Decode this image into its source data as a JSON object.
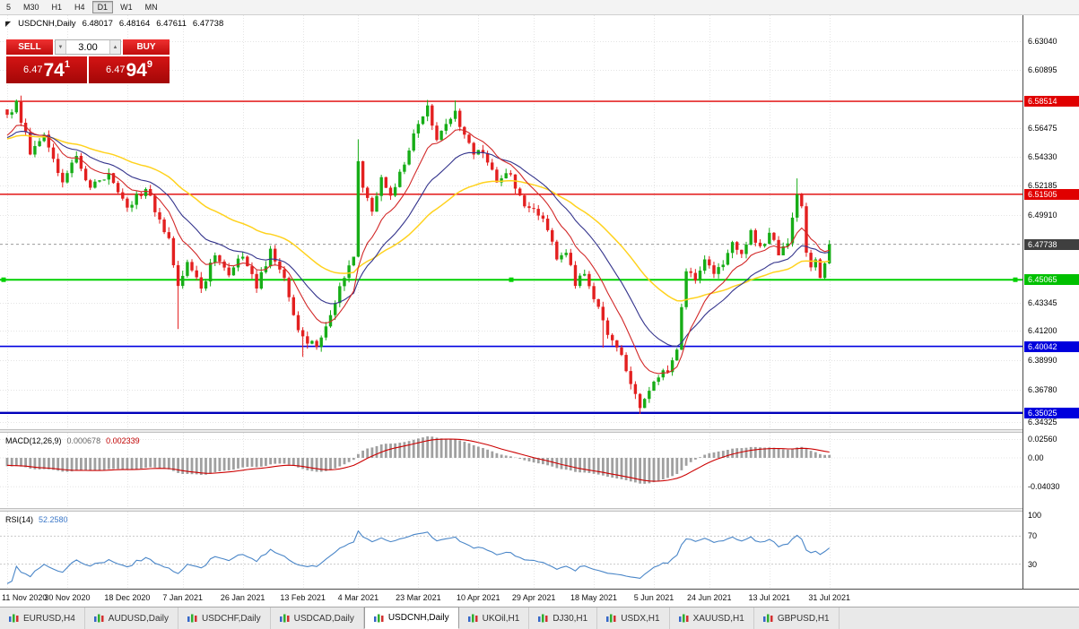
{
  "toolbar": {
    "timeframes": [
      {
        "label": "5",
        "selected": false
      },
      {
        "label": "M30",
        "selected": false
      },
      {
        "label": "H1",
        "selected": false
      },
      {
        "label": "H4",
        "selected": false
      },
      {
        "label": "D1",
        "selected": true
      },
      {
        "label": "W1",
        "selected": false
      },
      {
        "label": "MN",
        "selected": false
      }
    ]
  },
  "icons": {
    "collapse": "◤",
    "volume_down": "▼",
    "volume_up": "▲"
  },
  "header": {
    "symbol": "USDCNH,Daily",
    "open": "6.48017",
    "high": "6.48164",
    "low": "6.47611",
    "close": "6.47738"
  },
  "trade_panel": {
    "sell_label": "SELL",
    "buy_label": "BUY",
    "volume": "3.00",
    "sell_price": {
      "prefix": "6.47",
      "big": "74",
      "sup": "1"
    },
    "buy_price": {
      "prefix": "6.47",
      "big": "94",
      "sup": "9"
    }
  },
  "macd_panel": {
    "title": "MACD(12,26,9)",
    "value_main": "0.000678",
    "value_signal": "0.002339",
    "axis": [
      {
        "label": "0.02560",
        "value": 0.0256
      },
      {
        "label": "0.00",
        "value": 0
      },
      {
        "label": "-0.04030",
        "value": -0.0403
      }
    ]
  },
  "rsi_panel": {
    "title": "RSI(14)",
    "value": "52.2580",
    "axis": [
      {
        "label": "100",
        "value": 100
      },
      {
        "label": "70",
        "value": 70
      },
      {
        "label": "30",
        "value": 30
      }
    ],
    "levels": [
      70,
      30
    ]
  },
  "tabs": [
    {
      "label": "EURUSD,H4",
      "active": false
    },
    {
      "label": "AUDUSD,Daily",
      "active": false
    },
    {
      "label": "USDCHF,Daily",
      "active": false
    },
    {
      "label": "USDCAD,Daily",
      "active": false
    },
    {
      "label": "USDCNH,Daily",
      "active": true
    },
    {
      "label": "UKOil,H1",
      "active": false
    },
    {
      "label": "DJ30,H1",
      "active": false
    },
    {
      "label": "USDX,H1",
      "active": false
    },
    {
      "label": "XAUUSD,H1",
      "active": false
    },
    {
      "label": "GBPUSD,H1",
      "active": false
    }
  ],
  "colors": {
    "bull": "#17ad17",
    "bear": "#e32020",
    "grid": "#e4e4e4",
    "macd_bar": "#a0a0a0",
    "macd_signal": "#cc0000",
    "rsi_line": "#4a86c8"
  },
  "chart_data": {
    "type": "candlestick",
    "symbol": "USDCNH",
    "timeframe": "Daily",
    "values_approximate": true,
    "y_range": [
      6.338,
      6.65
    ],
    "y_ticks": [
      {
        "label": "6.63040",
        "value": 6.6304
      },
      {
        "label": "6.60895",
        "value": 6.60895
      },
      {
        "label": "6.56475",
        "value": 6.56475
      },
      {
        "label": "6.54330",
        "value": 6.5433
      },
      {
        "label": "6.52185",
        "value": 6.52185
      },
      {
        "label": "6.49910",
        "value": 6.4991
      },
      {
        "label": "6.43345",
        "value": 6.43345
      },
      {
        "label": "6.41200",
        "value": 6.412
      },
      {
        "label": "6.38990",
        "value": 6.3899
      },
      {
        "label": "6.36780",
        "value": 6.3678
      },
      {
        "label": "6.34325",
        "value": 6.34325
      }
    ],
    "price_badges": [
      {
        "label": "6.58514",
        "value": 6.58514,
        "type": "red"
      },
      {
        "label": "6.51505",
        "value": 6.51505,
        "type": "red"
      },
      {
        "label": "6.47738",
        "value": 6.47738,
        "type": "price"
      },
      {
        "label": "6.45065",
        "value": 6.45065,
        "type": "green"
      },
      {
        "label": "6.40042",
        "value": 6.40042,
        "type": "blue"
      },
      {
        "label": "6.35025",
        "value": 6.35025,
        "type": "blue"
      }
    ],
    "levels": [
      {
        "value": 6.58514,
        "color": "#e00000",
        "width": 1.4,
        "handles": false
      },
      {
        "value": 6.51505,
        "color": "#e00000",
        "width": 1.4,
        "handles": false
      },
      {
        "value": 6.45065,
        "color": "#00d000",
        "width": 2,
        "handles": true
      },
      {
        "value": 6.40042,
        "color": "#0000e0",
        "width": 1.6,
        "handles": false
      },
      {
        "value": 6.35025,
        "color": "#0000bb",
        "width": 2.4,
        "handles": false
      }
    ],
    "current_price": {
      "value": 6.47738,
      "label": "6.47738"
    },
    "x_start": 8,
    "x_step": 5.15,
    "candle_count": 179,
    "dates": [
      {
        "label": "11 Nov 2020",
        "idx": 0
      },
      {
        "label": "30 Nov 2020",
        "idx": 13
      },
      {
        "label": "18 Dec 2020",
        "idx": 26
      },
      {
        "label": "7 Jan 2021",
        "idx": 38
      },
      {
        "label": "26 Jan 2021",
        "idx": 51
      },
      {
        "label": "13 Feb 2021",
        "idx": 64
      },
      {
        "label": "4 Mar 2021",
        "idx": 76
      },
      {
        "label": "23 Mar 2021",
        "idx": 89
      },
      {
        "label": "10 Apr 2021",
        "idx": 102
      },
      {
        "label": "29 Apr 2021",
        "idx": 114
      },
      {
        "label": "18 May 2021",
        "idx": 127
      },
      {
        "label": "5 Jun 2021",
        "idx": 140
      },
      {
        "label": "24 Jun 2021",
        "idx": 152
      },
      {
        "label": "13 Jul 2021",
        "idx": 165
      },
      {
        "label": "31 Jul 2021",
        "idx": 178
      }
    ],
    "anchors": [
      [
        0,
        6.575
      ],
      [
        2,
        6.5855
      ],
      [
        5,
        6.545
      ],
      [
        8,
        6.56
      ],
      [
        12,
        6.524
      ],
      [
        15,
        6.544
      ],
      [
        18,
        6.52
      ],
      [
        22,
        6.531
      ],
      [
        26,
        6.505
      ],
      [
        30,
        6.519
      ],
      [
        33,
        6.496
      ],
      [
        35,
        6.482
      ],
      [
        37,
        6.446
      ],
      [
        39,
        6.464
      ],
      [
        42,
        6.444
      ],
      [
        45,
        6.469
      ],
      [
        48,
        6.454
      ],
      [
        51,
        6.468
      ],
      [
        54,
        6.444
      ],
      [
        57,
        6.474
      ],
      [
        60,
        6.452
      ],
      [
        62,
        6.424
      ],
      [
        64,
        6.408
      ],
      [
        67,
        6.4
      ],
      [
        70,
        6.424
      ],
      [
        73,
        6.452
      ],
      [
        75,
        6.468
      ],
      [
        76,
        6.54
      ],
      [
        77,
        6.52
      ],
      [
        79,
        6.502
      ],
      [
        81,
        6.528
      ],
      [
        83,
        6.514
      ],
      [
        85,
        6.532
      ],
      [
        87,
        6.548
      ],
      [
        89,
        6.568
      ],
      [
        91,
        6.582
      ],
      [
        93,
        6.556
      ],
      [
        95,
        6.568
      ],
      [
        97,
        6.578
      ],
      [
        99,
        6.56
      ],
      [
        101,
        6.545
      ],
      [
        103,
        6.546
      ],
      [
        106,
        6.524
      ],
      [
        109,
        6.53
      ],
      [
        112,
        6.506
      ],
      [
        115,
        6.499
      ],
      [
        117,
        6.488
      ],
      [
        119,
        6.466
      ],
      [
        121,
        6.471
      ],
      [
        123,
        6.446
      ],
      [
        125,
        6.455
      ],
      [
        127,
        6.436
      ],
      [
        129,
        6.42
      ],
      [
        131,
        6.405
      ],
      [
        133,
        6.394
      ],
      [
        135,
        6.372
      ],
      [
        137,
        6.354
      ],
      [
        139,
        6.367
      ],
      [
        141,
        6.377
      ],
      [
        143,
        6.381
      ],
      [
        145,
        6.398
      ],
      [
        146,
        6.43
      ],
      [
        147,
        6.457
      ],
      [
        149,
        6.45
      ],
      [
        151,
        6.466
      ],
      [
        153,
        6.455
      ],
      [
        155,
        6.462
      ],
      [
        157,
        6.479
      ],
      [
        159,
        6.47
      ],
      [
        161,
        6.488
      ],
      [
        163,
        6.476
      ],
      [
        165,
        6.486
      ],
      [
        167,
        6.469
      ],
      [
        169,
        6.478
      ],
      [
        171,
        6.515
      ],
      [
        172,
        6.506
      ],
      [
        173,
        6.471
      ],
      [
        174,
        6.46
      ],
      [
        175,
        6.466
      ],
      [
        176,
        6.452
      ],
      [
        177,
        6.463
      ],
      [
        178,
        6.4774
      ]
    ],
    "wick_high_overrides": {
      "2": 6.5865,
      "76": 6.5565,
      "91": 6.5862,
      "97": 6.5858,
      "171": 6.527
    },
    "wick_low_overrides": {
      "37": 6.4135,
      "64": 6.3925,
      "129": 6.3995,
      "137": 6.3495
    },
    "moving_averages": [
      {
        "name": "slow",
        "period": 45,
        "color": "#ffd21e"
      },
      {
        "name": "mid",
        "period": 21,
        "color": "#34348c"
      },
      {
        "name": "fast",
        "period": 10,
        "color": "#d22828"
      }
    ],
    "synthesis": {
      "ma_pad_value": 6.556,
      "ma_pad_len": 50,
      "ind_pad_from": 6.645,
      "ind_pad_to": 6.585,
      "ind_pad_len": 35,
      "noise": 0.0035,
      "wick": 0.004,
      "seed": 7
    }
  }
}
